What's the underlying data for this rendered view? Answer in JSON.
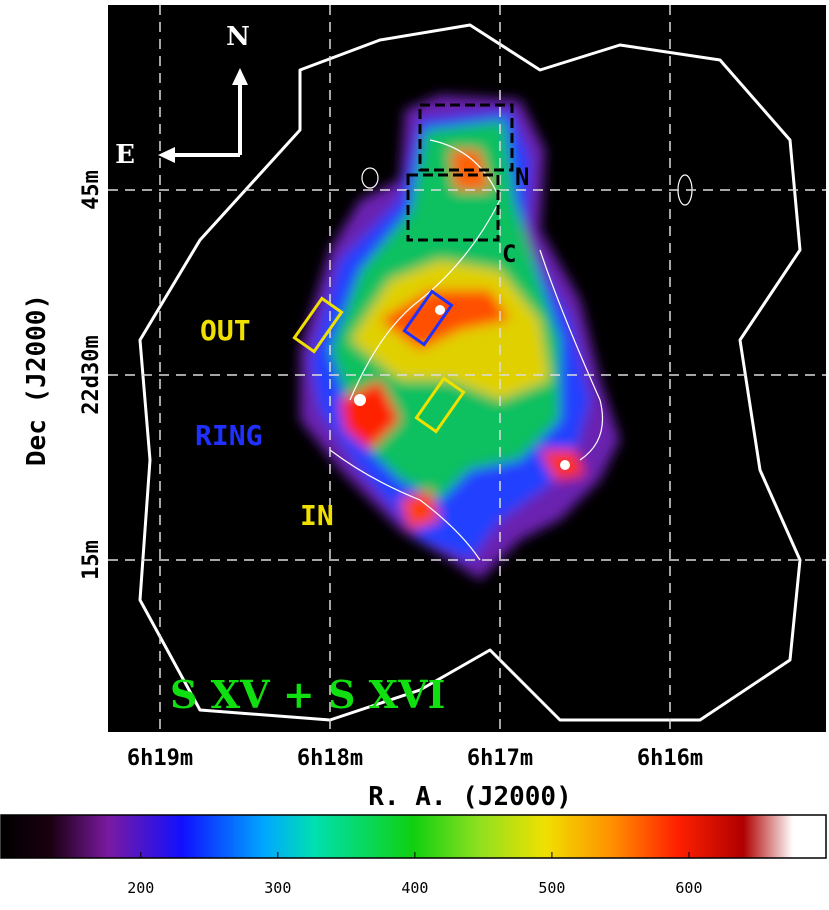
{
  "map": {
    "compass": {
      "north": "N",
      "east": "E"
    },
    "x_axis": {
      "label": "R. A. (J2000)",
      "ticks": [
        "6h19m",
        "6h18m",
        "6h17m",
        "6h16m"
      ]
    },
    "y_axis": {
      "label": "Dec (J2000)",
      "ticks": [
        "45m",
        "22d30m",
        "15m"
      ]
    },
    "regions": {
      "out": "OUT",
      "ring": "RING",
      "in": "IN",
      "north": "N",
      "center": "C"
    },
    "band": "S XV + S XVI"
  },
  "colorbar": {
    "lim": [
      98,
      700
    ],
    "ticks": [
      200,
      300,
      400,
      500,
      600
    ]
  }
}
